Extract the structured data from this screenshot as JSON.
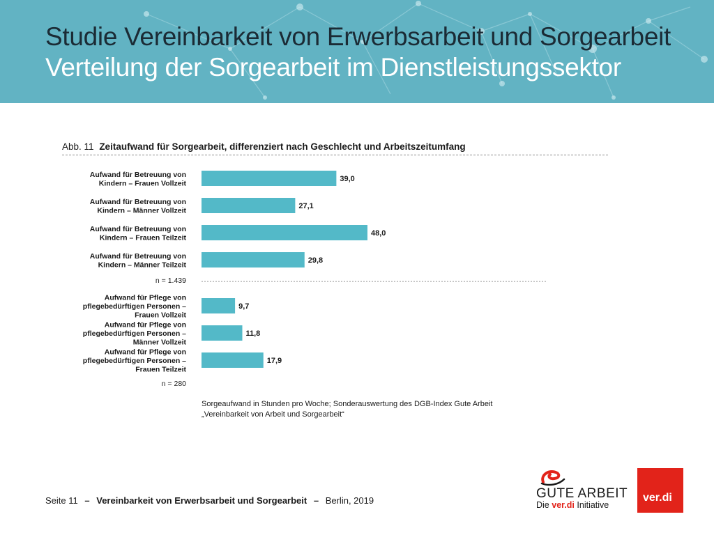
{
  "header": {
    "title": "Studie Vereinbarkeit von Erwerbsarbeit und Sorgearbeit",
    "subtitle": "Verteilung der Sorgearbeit im Dienstleistungssektor"
  },
  "figure": {
    "label": "Abb. 11",
    "title": "Zeitaufwand für Sorgearbeit, differenziert nach Geschlecht und Arbeitszeitumfang"
  },
  "chart_data": {
    "type": "bar",
    "orientation": "horizontal",
    "bar_color": "#53b9c8",
    "xlim": [
      0,
      48
    ],
    "groups": [
      {
        "n_label": "n = 1.439",
        "bars": [
          {
            "label_lines": [
              "Aufwand für Betreuung von",
              "Kindern – Frauen Vollzeit"
            ],
            "value": 39.0,
            "value_label": "39,0"
          },
          {
            "label_lines": [
              "Aufwand für Betreuung von",
              "Kindern – Männer Vollzeit"
            ],
            "value": 27.1,
            "value_label": "27,1"
          },
          {
            "label_lines": [
              "Aufwand für Betreuung von",
              "Kindern – Frauen Teilzeit"
            ],
            "value": 48.0,
            "value_label": "48,0"
          },
          {
            "label_lines": [
              "Aufwand für Betreuung von",
              "Kindern – Männer Teilzeit"
            ],
            "value": 29.8,
            "value_label": "29,8"
          }
        ]
      },
      {
        "n_label": "n = 280",
        "bars": [
          {
            "label_lines": [
              "Aufwand für Pflege von",
              "pflegebedürftigen Personen –",
              "Frauen Vollzeit"
            ],
            "value": 9.7,
            "value_label": "9,7"
          },
          {
            "label_lines": [
              "Aufwand für Pflege von",
              "pflegebedürftigen Personen –",
              "Männer Vollzeit"
            ],
            "value": 11.8,
            "value_label": "11,8"
          },
          {
            "label_lines": [
              "Aufwand für Pflege von",
              "pflegebedürftigen Personen –",
              "Frauen Teilzeit"
            ],
            "value": 17.9,
            "value_label": "17,9"
          }
        ]
      }
    ]
  },
  "source": {
    "line1": "Sorgeaufwand in Stunden pro Woche; Sonderauswertung des DGB-Index Gute Arbeit",
    "line2": "„Vereinbarkeit von Arbeit und Sorgearbeit“"
  },
  "footer": {
    "page": "Seite 11",
    "dash1": "–",
    "document": "Vereinbarkeit von Erwerbsarbeit und Sorgearbeit",
    "dash2": "–",
    "place_year": "Berlin, 2019"
  },
  "logos": {
    "gute_arbeit": "GUTE ARBEIT",
    "die": "Die",
    "verdi_inline": "ver.di",
    "initiative": "Initiative",
    "verdi": "ver.di"
  },
  "colors": {
    "banner": "#62b3c3",
    "bar": "#53b9c8",
    "brand_red": "#e2231a",
    "title_dark": "#1b2b35"
  }
}
